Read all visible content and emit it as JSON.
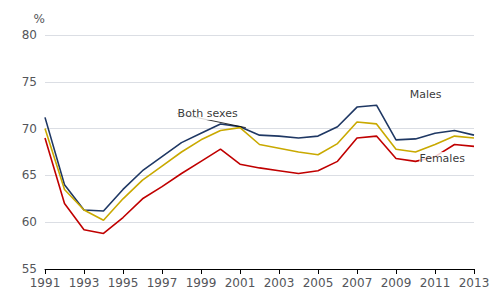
{
  "chart_data": {
    "type": "line",
    "x": [
      1991,
      1992,
      1993,
      1994,
      1995,
      1996,
      1997,
      1998,
      1999,
      2000,
      2001,
      2002,
      2003,
      2004,
      2005,
      2006,
      2007,
      2008,
      2009,
      2010,
      2011,
      2012,
      2013
    ],
    "series": [
      {
        "name": "Males",
        "color": "#1f3864",
        "values": [
          71.2,
          64.0,
          61.3,
          61.2,
          63.5,
          65.5,
          67.0,
          68.5,
          69.5,
          70.5,
          70.2,
          69.3,
          69.2,
          69.0,
          69.2,
          70.2,
          72.3,
          72.5,
          68.8,
          68.9,
          69.5,
          69.8,
          69.3
        ]
      },
      {
        "name": "Both sexes",
        "color": "#c9a900",
        "values": [
          70.0,
          63.5,
          61.3,
          60.2,
          62.5,
          64.5,
          66.0,
          67.5,
          68.8,
          69.8,
          70.1,
          68.3,
          67.9,
          67.5,
          67.2,
          68.4,
          70.7,
          70.5,
          67.8,
          67.5,
          68.3,
          69.2,
          69.0
        ]
      },
      {
        "name": "Females",
        "color": "#c00000",
        "values": [
          69.0,
          62.0,
          59.2,
          58.8,
          60.5,
          62.5,
          63.8,
          65.2,
          66.5,
          67.8,
          66.2,
          65.8,
          65.5,
          65.2,
          65.5,
          66.5,
          69.0,
          69.2,
          66.8,
          66.5,
          67.0,
          68.3,
          68.1
        ]
      }
    ],
    "xlim": [
      1991,
      2013
    ],
    "xticks": [
      1991,
      1993,
      1995,
      1997,
      1999,
      2001,
      2003,
      2005,
      2007,
      2009,
      2011,
      2013
    ],
    "ylim": [
      55,
      80
    ],
    "yticks": [
      55,
      60,
      65,
      70,
      75,
      80
    ],
    "ylabel": "%",
    "grid": true,
    "annotations": [
      {
        "text": "Both sexes",
        "x": 1997.8,
        "y": 71.6,
        "arrow_to": [
          2001.3,
          70.1
        ]
      },
      {
        "text": "Males",
        "x": 2009.7,
        "y": 73.6
      },
      {
        "text": "Females",
        "x": 2010.2,
        "y": 66.8
      }
    ]
  }
}
